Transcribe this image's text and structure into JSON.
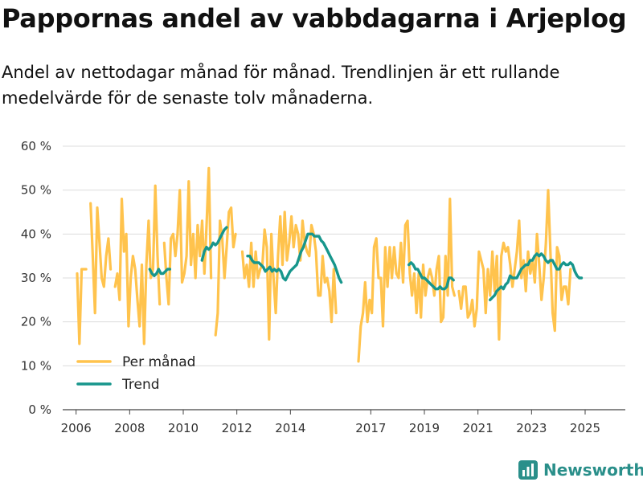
{
  "title": "Pappornas andel av vabbdagarna i Arjeplog",
  "subtitle": "Andel av nettodagar månad för månad. Trendlinjen är ett rullande medelvärde för de senaste tolv månaderna.",
  "brand": {
    "name": "Newsworthy",
    "icon": "newsworthy-logo-icon",
    "color": "#2a8f8a"
  },
  "colors": {
    "monthly": "#ffc34d",
    "trend": "#17968c",
    "grid": "#dcdcdc"
  },
  "chart_data": {
    "type": "line",
    "title": "Pappornas andel av vabbdagarna i Arjeplog",
    "xlabel": "",
    "ylabel": "",
    "xlim": [
      2005.5,
      2026.5
    ],
    "ylim": [
      0,
      60
    ],
    "grid": true,
    "legend_position": "bottom-left",
    "x_ticks": [
      2006,
      2008,
      2010,
      2012,
      2014,
      2017,
      2019,
      2021,
      2023,
      2025
    ],
    "x_tick_labels": [
      "2006",
      "2008",
      "2010",
      "2012",
      "2014",
      "2017",
      "2019",
      "2021",
      "2023",
      "2025"
    ],
    "y_ticks": [
      0,
      10,
      20,
      30,
      40,
      50,
      60
    ],
    "y_tick_labels": [
      "0 %",
      "10 %",
      "20 %",
      "30 %",
      "40 %",
      "50 %",
      "60 %"
    ],
    "series": [
      {
        "name": "Per månad",
        "segments": [
          {
            "start": 2006.04,
            "step": 0.0833,
            "values": [
              31,
              15,
              32,
              32,
              32,
              null,
              47,
              35,
              22,
              46,
              38,
              30,
              28,
              35,
              39,
              32,
              null,
              28,
              31,
              25,
              48,
              36,
              40,
              19,
              30,
              35,
              32,
              25,
              19,
              33,
              15,
              33,
              43,
              30,
              32,
              51,
              35,
              24,
              null,
              38,
              30,
              24,
              39,
              40,
              35,
              40,
              50,
              29,
              31,
              35,
              52,
              33,
              40,
              30,
              42,
              35,
              43,
              31,
              42,
              55,
              30,
              null,
              17,
              22,
              43,
              39,
              30,
              37,
              45,
              46,
              37,
              40,
              null,
              null,
              36,
              30,
              33,
              28,
              38,
              28,
              36,
              30,
              32,
              33,
              41,
              37,
              16,
              40,
              30,
              22,
              35,
              44,
              33,
              45,
              34,
              38,
              44,
              37,
              42,
              40,
              34,
              43,
              38,
              36,
              35,
              42,
              40,
              36,
              26,
              26,
              35,
              29,
              30,
              27,
              20,
              32,
              22
            ]
          },
          {
            "start": 2016.54,
            "step": 0.0833,
            "values": [
              11,
              19,
              22,
              29,
              20,
              25,
              22,
              37,
              39,
              30,
              30,
              19,
              37,
              28,
              37,
              30,
              37,
              31,
              30,
              38,
              29,
              42,
              43,
              31,
              26,
              31,
              22,
              31,
              21,
              33,
              26,
              30,
              32,
              30,
              26,
              32,
              35,
              20,
              21,
              35,
              26,
              48,
              28,
              26,
              null,
              27,
              23,
              28,
              28,
              21,
              22,
              25,
              19,
              23,
              36,
              34,
              32,
              22,
              32,
              26,
              36,
              27,
              35,
              16,
              35,
              38,
              36,
              37,
              33,
              28,
              32,
              36,
              43,
              30,
              34,
              27,
              36,
              31,
              34,
              29,
              40,
              33,
              25,
              30,
              38,
              50,
              36,
              22,
              18,
              37,
              35,
              25,
              28,
              28,
              24,
              32
            ]
          }
        ]
      },
      {
        "name": "Trend",
        "segments": [
          {
            "start": 2008.75,
            "step": 0.0833,
            "values": [
              32,
              31,
              30.5,
              31,
              32,
              31,
              31,
              31.5,
              32,
              32
            ]
          },
          {
            "start": 2010.7,
            "step": 0.0833,
            "values": [
              34,
              36,
              37,
              36.5,
              37,
              38,
              37.5,
              38,
              39,
              40,
              41,
              41.5
            ]
          },
          {
            "start": 2012.4,
            "step": 0.0833,
            "values": [
              35,
              35,
              34,
              33.5,
              33.5,
              33.5,
              33,
              32.5,
              31.5,
              32,
              32.5,
              31.5,
              32,
              31.5,
              32,
              31.5,
              30,
              29.5,
              30.5,
              31.5,
              32,
              32.5,
              33,
              34.5,
              36,
              37,
              38.5,
              40,
              40,
              40,
              39.5,
              39.5,
              39.5,
              38.5,
              38,
              37,
              36,
              35,
              34,
              33,
              31.5,
              30,
              29
            ]
          },
          {
            "start": 2018.42,
            "step": 0.0833,
            "values": [
              33,
              33.5,
              33,
              32,
              32,
              31,
              30,
              30,
              29.5,
              29,
              28.5,
              28,
              27.5,
              27.5,
              28,
              27.5,
              27.5,
              28,
              30,
              30,
              29.5
            ]
          },
          {
            "start": 2021.45,
            "step": 0.0833,
            "values": [
              25,
              25.5,
              26,
              27,
              27.5,
              28,
              27.5,
              28.5,
              29,
              30.5,
              30,
              30,
              30,
              31,
              32,
              32.5,
              33,
              33,
              34,
              34,
              35,
              35.5,
              35,
              35.5,
              35,
              34,
              33.5,
              34,
              34,
              33,
              32,
              32,
              33,
              33.5,
              33,
              33,
              33.5,
              33,
              31.5,
              30.5,
              30,
              30
            ]
          }
        ]
      }
    ]
  }
}
